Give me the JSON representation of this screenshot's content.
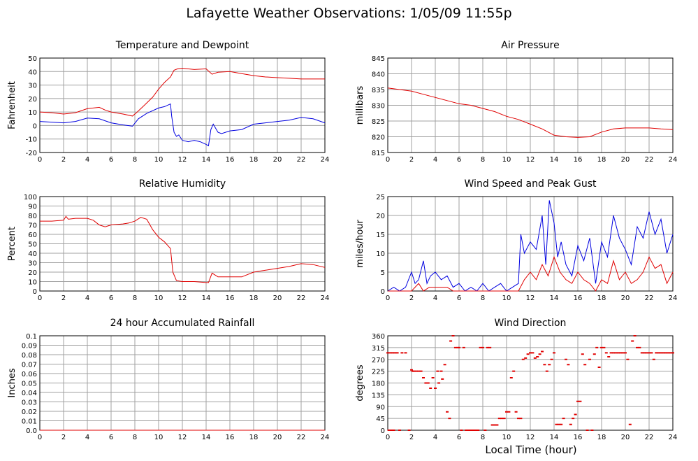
{
  "page": {
    "title": "Lafayette Weather Observations: 1/05/09 11:55p",
    "x_axis_title": "Local Time (hour)"
  },
  "chart_data": [
    {
      "type": "line",
      "title": "Temperature and Dewpoint",
      "xlabel": "",
      "ylabel": "Fahrenheit",
      "xlim": [
        0,
        24
      ],
      "ylim": [
        -20,
        50
      ],
      "x_ticks": [
        0,
        2,
        4,
        6,
        8,
        10,
        12,
        14,
        16,
        18,
        20,
        22,
        24
      ],
      "y_ticks": [
        -20,
        -10,
        0,
        10,
        20,
        30,
        40,
        50
      ],
      "grid": true,
      "series": [
        {
          "color": "#e00000",
          "x": [
            0,
            1,
            2,
            3,
            4,
            5,
            5.5,
            6,
            7,
            7.8,
            8.2,
            8.8,
            9.5,
            10,
            10.5,
            11,
            11.3,
            11.6,
            12,
            13,
            14,
            14.5,
            15,
            16,
            17,
            18,
            19,
            20,
            21,
            22,
            23,
            24
          ],
          "y": [
            10,
            9.5,
            8.5,
            9.5,
            12.5,
            13.5,
            11.5,
            10,
            8.5,
            7,
            10,
            15,
            21,
            27,
            32,
            36,
            41,
            42,
            42.5,
            41.5,
            42,
            38,
            39.5,
            40,
            38.5,
            37,
            36,
            35.5,
            35,
            34.5,
            34.5,
            34.5
          ]
        },
        {
          "color": "#0000e0",
          "x": [
            0,
            1,
            2,
            3,
            4,
            5,
            6,
            7,
            7.8,
            8.3,
            9,
            9.5,
            10,
            10.5,
            11,
            11.1,
            11.3,
            11.5,
            11.7,
            12,
            12.5,
            13,
            13.5,
            14,
            14.2,
            14.4,
            14.6,
            15,
            15.3,
            16,
            17,
            18,
            19,
            20,
            21,
            22,
            23,
            24
          ],
          "y": [
            3,
            2.5,
            2,
            3,
            5.5,
            5,
            2,
            0.5,
            -0.5,
            5,
            9,
            11,
            13,
            14,
            16,
            7,
            -5,
            -8,
            -7,
            -11,
            -12,
            -11,
            -12,
            -14,
            -15,
            -3,
            1,
            -5,
            -6,
            -4,
            -3,
            1,
            2,
            3,
            4,
            6,
            5,
            2
          ]
        }
      ]
    },
    {
      "type": "line",
      "title": "Air Pressure",
      "xlabel": "",
      "ylabel": "millibars",
      "xlim": [
        0,
        24
      ],
      "ylim": [
        815,
        845
      ],
      "x_ticks": [
        0,
        2,
        4,
        6,
        8,
        10,
        12,
        14,
        16,
        18,
        20,
        22,
        24
      ],
      "y_ticks": [
        815,
        820,
        825,
        830,
        835,
        840,
        845
      ],
      "grid": true,
      "series": [
        {
          "color": "#e00000",
          "x": [
            0,
            1,
            2,
            3,
            4,
            5,
            6,
            7,
            8,
            9,
            10,
            11,
            12,
            13,
            14,
            15,
            16,
            17,
            18,
            19,
            20,
            21,
            22,
            23,
            24
          ],
          "y": [
            835.5,
            835,
            834.5,
            833.5,
            832.5,
            831.5,
            830.5,
            830,
            829,
            828,
            826.5,
            825.5,
            824,
            822.5,
            820.5,
            820,
            819.8,
            820,
            821.5,
            822.5,
            822.8,
            822.8,
            822.8,
            822.5,
            822.3
          ]
        }
      ]
    },
    {
      "type": "line",
      "title": "Relative Humidity",
      "xlabel": "",
      "ylabel": "Percent",
      "xlim": [
        0,
        24
      ],
      "ylim": [
        0,
        100
      ],
      "x_ticks": [
        0,
        2,
        4,
        6,
        8,
        10,
        12,
        14,
        16,
        18,
        20,
        22,
        24
      ],
      "y_ticks": [
        0,
        10,
        20,
        30,
        40,
        50,
        60,
        70,
        80,
        90,
        100
      ],
      "grid": true,
      "series": [
        {
          "color": "#e00000",
          "x": [
            0,
            1,
            2,
            2.2,
            2.4,
            3,
            4,
            4.5,
            5,
            5.5,
            6,
            7,
            7.5,
            8,
            8.5,
            9,
            9.5,
            10,
            10.5,
            11,
            11.2,
            11.5,
            12,
            13,
            14,
            14.2,
            14.5,
            15,
            16,
            17,
            18,
            19,
            20,
            21,
            22,
            23,
            24
          ],
          "y": [
            74,
            74,
            75,
            79,
            76,
            77,
            77,
            75,
            70,
            68,
            70,
            71,
            72,
            74,
            78,
            76,
            65,
            57,
            52,
            45,
            20,
            11,
            10,
            10,
            9,
            9,
            19,
            15,
            15,
            15,
            20,
            22,
            24,
            26,
            29,
            28,
            25
          ]
        }
      ]
    },
    {
      "type": "line",
      "title": "Wind Speed and Peak Gust",
      "xlabel": "",
      "ylabel": "miles/hour",
      "xlim": [
        0,
        24
      ],
      "ylim": [
        0,
        25
      ],
      "x_ticks": [
        0,
        2,
        4,
        6,
        8,
        10,
        12,
        14,
        16,
        18,
        20,
        22,
        24
      ],
      "y_ticks": [
        0,
        5,
        10,
        15,
        20,
        25
      ],
      "grid": true,
      "series": [
        {
          "color": "#0000e0",
          "x": [
            0,
            0.5,
            1,
            1.5,
            2,
            2.3,
            2.6,
            3,
            3.3,
            3.6,
            4,
            4.5,
            5,
            5.5,
            6,
            6.5,
            7,
            7.5,
            8,
            8.5,
            9,
            9.5,
            10,
            10.5,
            11,
            11.2,
            11.5,
            12,
            12.5,
            13,
            13.3,
            13.6,
            14,
            14.3,
            14.6,
            15,
            15.5,
            16,
            16.5,
            17,
            17.5,
            18,
            18.5,
            19,
            19.5,
            20,
            20.5,
            21,
            21.5,
            22,
            22.5,
            23,
            23.5,
            24
          ],
          "y": [
            0,
            1,
            0,
            1,
            5,
            2,
            3,
            8,
            2,
            4,
            5,
            3,
            4,
            1,
            2,
            0,
            1,
            0,
            2,
            0,
            1,
            2,
            0,
            1,
            2,
            15,
            10,
            13,
            11,
            20,
            7,
            24,
            18,
            9,
            13,
            7,
            4,
            12,
            8,
            14,
            2,
            13,
            9,
            20,
            14,
            11,
            7,
            17,
            14,
            21,
            15,
            19,
            10,
            15
          ]
        },
        {
          "color": "#e00000",
          "x": [
            0,
            1,
            2,
            2.3,
            2.6,
            3,
            3.5,
            4,
            4.5,
            5,
            5.5,
            6,
            6.5,
            7,
            7.5,
            8,
            8.5,
            9,
            9.5,
            10,
            10.5,
            11,
            11.5,
            12,
            12.5,
            13,
            13.5,
            14,
            14.5,
            15,
            15.5,
            16,
            16.5,
            17,
            17.5,
            18,
            18.5,
            19,
            19.5,
            20,
            20.5,
            21,
            21.5,
            22,
            22.5,
            23,
            23.5,
            24
          ],
          "y": [
            0,
            0,
            0,
            1,
            2,
            0,
            1,
            1,
            1,
            1,
            0,
            0,
            0,
            0,
            0,
            0,
            0,
            0,
            0,
            0,
            0,
            0,
            3,
            5,
            3,
            7,
            4,
            9,
            5,
            3,
            2,
            5,
            3,
            2,
            0,
            3,
            2,
            8,
            3,
            5,
            2,
            3,
            5,
            9,
            6,
            7,
            2,
            5
          ]
        }
      ]
    },
    {
      "type": "line",
      "title": "24 hour Accumulated Rainfall",
      "xlabel": "",
      "ylabel": "Inches",
      "xlim": [
        0,
        24
      ],
      "ylim": [
        0,
        0.1
      ],
      "x_ticks": [
        0,
        2,
        4,
        6,
        8,
        10,
        12,
        14,
        16,
        18,
        20,
        22,
        24
      ],
      "y_ticks": [
        "0.0",
        "0.01",
        "0.02",
        "0.03",
        "0.04",
        "0.05",
        "0.06",
        "0.07",
        "0.08",
        "0.09",
        "0.1"
      ],
      "grid": true,
      "series": [
        {
          "color": "#e00000",
          "x": [
            0,
            24
          ],
          "y": [
            0,
            0
          ]
        }
      ]
    },
    {
      "type": "scatter",
      "title": "Wind Direction",
      "xlabel": "Local Time (hour)",
      "ylabel": "degrees",
      "xlim": [
        0,
        24
      ],
      "ylim": [
        0,
        360
      ],
      "x_ticks": [
        0,
        2,
        4,
        6,
        8,
        10,
        12,
        14,
        16,
        18,
        20,
        22,
        24
      ],
      "y_ticks": [
        0,
        45,
        90,
        135,
        180,
        225,
        270,
        315,
        360
      ],
      "grid": true,
      "series": [
        {
          "color": "#e00000",
          "x": [
            0,
            0.2,
            0.4,
            0.6,
            0.8,
            1.0,
            0.1,
            0.3,
            0.5,
            1.2,
            1.5,
            1.8,
            2.0,
            2.1,
            2.2,
            2.4,
            2.6,
            2.8,
            3.0,
            3.2,
            3.4,
            3.6,
            3.8,
            4.0,
            4.2,
            4.3,
            4.5,
            4.6,
            4.8,
            5.0,
            5.2,
            5.3,
            5.5,
            5.7,
            5.9,
            6.0,
            6.2,
            6.4,
            6.6,
            6.8,
            7.0,
            7.2,
            7.4,
            7.6,
            7.8,
            8.0,
            8.2,
            8.4,
            8.6,
            8.8,
            9.0,
            9.2,
            9.4,
            9.6,
            9.8,
            10.0,
            10.2,
            10.4,
            10.6,
            10.8,
            11.0,
            11.2,
            11.4,
            11.6,
            11.8,
            12.0,
            12.2,
            12.4,
            12.6,
            12.8,
            13.0,
            13.2,
            13.4,
            13.6,
            13.8,
            14.0,
            14.2,
            14.4,
            14.6,
            14.8,
            15.0,
            15.2,
            15.4,
            15.6,
            15.8,
            16.0,
            16.2,
            16.4,
            16.6,
            16.8,
            17.0,
            17.2,
            17.4,
            17.6,
            17.8,
            18.0,
            18.2,
            18.4,
            18.6,
            18.8,
            19.0,
            19.2,
            19.4,
            19.6,
            19.8,
            20.0,
            20.2,
            20.4,
            20.6,
            20.8,
            21.0,
            21.2,
            21.4,
            21.6,
            21.8,
            22.0,
            22.2,
            22.4,
            22.6,
            22.8,
            23.0,
            23.2,
            23.4,
            23.6,
            23.8,
            24.0
          ],
          "y": [
            295,
            295,
            295,
            295,
            295,
            0,
            0,
            0,
            0,
            295,
            295,
            0,
            230,
            225,
            225,
            225,
            225,
            225,
            200,
            180,
            180,
            160,
            200,
            160,
            225,
            180,
            225,
            195,
            250,
            70,
            45,
            340,
            360,
            315,
            315,
            315,
            0,
            315,
            0,
            0,
            0,
            0,
            0,
            0,
            315,
            315,
            0,
            315,
            315,
            20,
            20,
            20,
            45,
            45,
            45,
            70,
            70,
            200,
            225,
            70,
            45,
            45,
            270,
            275,
            290,
            295,
            295,
            275,
            280,
            290,
            300,
            250,
            225,
            250,
            270,
            295,
            22,
            22,
            22,
            45,
            270,
            250,
            22,
            45,
            60,
            110,
            110,
            290,
            250,
            0,
            270,
            0,
            290,
            315,
            240,
            315,
            315,
            295,
            280,
            295,
            295,
            295,
            295,
            295,
            295,
            295,
            270,
            22,
            340,
            360,
            315,
            315,
            295,
            295,
            295,
            295,
            295,
            270,
            295,
            295,
            295,
            295,
            295,
            295,
            295,
            295
          ]
        }
      ]
    }
  ]
}
